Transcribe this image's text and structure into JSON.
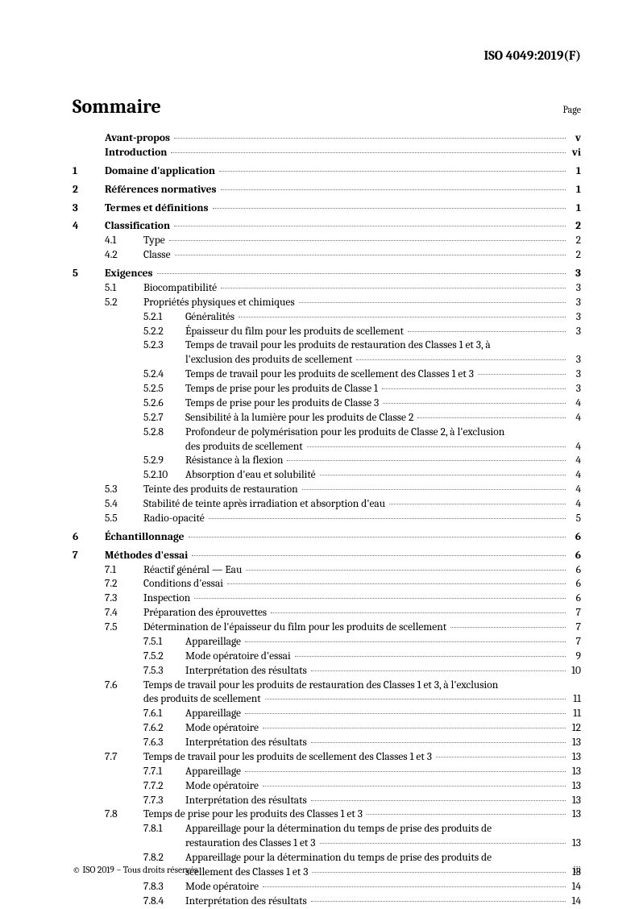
{
  "header": "ISO 4049:2019(F)",
  "title": "Sommaire",
  "page_label": "Page",
  "footer_left": "© ISO 2019 – Tous droits réservés",
  "footer_right": "iii",
  "top_entries": [
    {
      "label": "Avant-propos",
      "page": "v"
    },
    {
      "label": "Introduction",
      "page": "vi"
    }
  ],
  "sections": [
    {
      "num": "1",
      "label": "Domaine d'application",
      "page": "1",
      "subs": []
    },
    {
      "num": "2",
      "label": "Références normatives",
      "page": "1",
      "subs": []
    },
    {
      "num": "3",
      "label": "Termes et définitions",
      "page": "1",
      "subs": []
    },
    {
      "num": "4",
      "label": "Classification",
      "page": "2",
      "subs": [
        {
          "num": "4.1",
          "label": "Type",
          "page": "2",
          "subs": []
        },
        {
          "num": "4.2",
          "label": "Classe",
          "page": "2",
          "subs": []
        }
      ]
    },
    {
      "num": "5",
      "label": "Exigences",
      "page": "3",
      "subs": [
        {
          "num": "5.1",
          "label": "Biocompatibilité",
          "page": "3",
          "subs": []
        },
        {
          "num": "5.2",
          "label": "Propriétés physiques et chimiques",
          "page": "3",
          "subs": [
            {
              "num": "5.2.1",
              "label": "Généralités",
              "page": "3"
            },
            {
              "num": "5.2.2",
              "label": "Épaisseur du film pour les produits de scellement",
              "page": "3"
            },
            {
              "num": "5.2.3",
              "label": "Temps de travail pour les produits de restauration des Classes 1 et 3, à",
              "cont": "l'exclusion des produits de scellement",
              "page": "3"
            },
            {
              "num": "5.2.4",
              "label": "Temps de travail pour les produits de scellement des Classes 1 et 3",
              "page": "3"
            },
            {
              "num": "5.2.5",
              "label": "Temps de prise pour les produits de Classe 1",
              "page": "3"
            },
            {
              "num": "5.2.6",
              "label": "Temps de prise pour les produits de Classe 3",
              "page": "4"
            },
            {
              "num": "5.2.7",
              "label": "Sensibilité à la lumière pour les produits de Classe 2",
              "page": "4"
            },
            {
              "num": "5.2.8",
              "label": "Profondeur de polymérisation pour les produits de Classe 2, à l'exclusion",
              "cont": "des produits de scellement",
              "page": "4"
            },
            {
              "num": "5.2.9",
              "label": "Résistance à la flexion",
              "page": "4"
            },
            {
              "num": "5.2.10",
              "label": "Absorption d'eau et solubilité",
              "page": "4"
            }
          ]
        },
        {
          "num": "5.3",
          "label": "Teinte des produits de restauration",
          "page": "4",
          "subs": []
        },
        {
          "num": "5.4",
          "label": "Stabilité de teinte après irradiation et absorption d'eau",
          "page": "4",
          "subs": []
        },
        {
          "num": "5.5",
          "label": "Radio-opacité",
          "page": "5",
          "subs": []
        }
      ]
    },
    {
      "num": "6",
      "label": "Échantillonnage",
      "page": "6",
      "subs": []
    },
    {
      "num": "7",
      "label": "Méthodes d'essai",
      "page": "6",
      "subs": [
        {
          "num": "7.1",
          "label": "Réactif général — Eau",
          "page": "6",
          "subs": []
        },
        {
          "num": "7.2",
          "label": "Conditions d'essai",
          "page": "6",
          "subs": []
        },
        {
          "num": "7.3",
          "label": "Inspection",
          "page": "6",
          "subs": []
        },
        {
          "num": "7.4",
          "label": "Préparation des éprouvettes",
          "page": "7",
          "subs": []
        },
        {
          "num": "7.5",
          "label": "Détermination de l'épaisseur du film pour les produits de scellement",
          "page": "7",
          "subs": [
            {
              "num": "7.5.1",
              "label": "Appareillage",
              "page": "7"
            },
            {
              "num": "7.5.2",
              "label": "Mode opératoire d'essai",
              "page": "9"
            },
            {
              "num": "7.5.3",
              "label": "Interprétation des résultats",
              "page": "10"
            }
          ]
        },
        {
          "num": "7.6",
          "label": "Temps de travail pour les produits de restauration des Classes 1 et 3, à l'exclusion",
          "cont": "des produits de scellement",
          "page": "11",
          "subs": [
            {
              "num": "7.6.1",
              "label": "Appareillage",
              "page": "11"
            },
            {
              "num": "7.6.2",
              "label": "Mode opératoire",
              "page": "12"
            },
            {
              "num": "7.6.3",
              "label": "Interprétation des résultats",
              "page": "13"
            }
          ]
        },
        {
          "num": "7.7",
          "label": "Temps de travail pour les produits de scellement des Classes 1 et 3",
          "page": "13",
          "subs": [
            {
              "num": "7.7.1",
              "label": "Appareillage",
              "page": "13"
            },
            {
              "num": "7.7.2",
              "label": "Mode opératoire",
              "page": "13"
            },
            {
              "num": "7.7.3",
              "label": "Interprétation des résultats",
              "page": "13"
            }
          ]
        },
        {
          "num": "7.8",
          "label": "Temps de prise pour les produits des Classes 1 et 3",
          "page": "13",
          "subs": [
            {
              "num": "7.8.1",
              "label": "Appareillage pour la détermination du temps de prise des produits de",
              "cont": "restauration des Classes 1 et 3",
              "page": "13"
            },
            {
              "num": "7.8.2",
              "label": "Appareillage pour la détermination du temps de prise des produits de",
              "cont": "scellement des Classes 1 et 3",
              "page": "13"
            },
            {
              "num": "7.8.3",
              "label": "Mode opératoire",
              "page": "14"
            },
            {
              "num": "7.8.4",
              "label": "Interprétation des résultats",
              "page": "14"
            }
          ]
        }
      ]
    }
  ]
}
